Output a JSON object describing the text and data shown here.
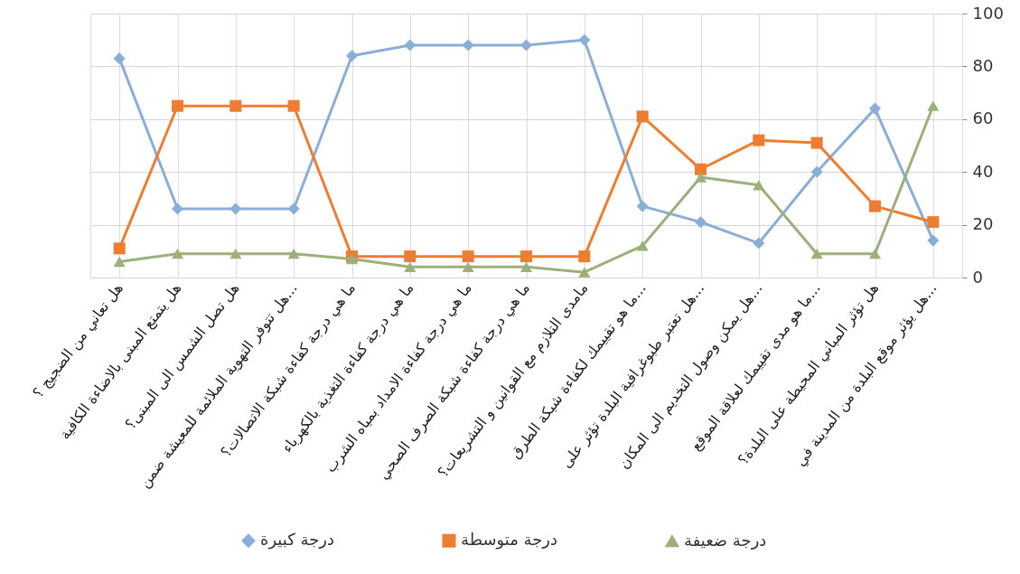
{
  "chart_data": {
    "type": "line",
    "categories": [
      "هل تعاني من الضجيج ؟",
      "هل يتمتع المبنى بالاضاءة الكافية",
      "هل تصل الشمس الى المبنى؟",
      "هل تتوفر التهوية الملائمة للمعيشة ضمن...",
      "ما هي درجة كفاءة شبكة الاتصالات؟",
      "ما هي درجة كفاءة التغذية بالكهرباء",
      "ما هي درجة كفاءة الامداد بمياه الشرب",
      "ما هي درجة كفاءة شبكة الصرف الصحي",
      "مامدى التلازم مع القوانين و التشريعات؟",
      "ما هو تقييمك لكفاءة شبكة الطرق...",
      "هل تعتبر طبوغرافية البلدة تؤثر على...",
      "هل يمكن وصول التخديم الى المكان...",
      "ما هو مدى تقييمك لعلاقة الموقع...",
      "هل تؤثر المباني المحيطة على البلدة؟",
      "هل يؤثر موقع البلدة من المدينة في..."
    ],
    "series": [
      {
        "name": "درجة كبيرة",
        "color": "#8aaed8",
        "marker": "diamond",
        "values": [
          83,
          26,
          26,
          26,
          84,
          88,
          88,
          88,
          90,
          27,
          21,
          13,
          40,
          64,
          14
        ]
      },
      {
        "name": "درجة متوسطة",
        "color": "#ed7d31",
        "marker": "square",
        "values": [
          11,
          65,
          65,
          65,
          8,
          8,
          8,
          8,
          8,
          61,
          41,
          52,
          51,
          27,
          21
        ]
      },
      {
        "name": "درجة ضعيفة",
        "color": "#9bb07a",
        "marker": "triangle",
        "values": [
          6,
          9,
          9,
          9,
          7,
          4,
          4,
          4,
          2,
          12,
          38,
          35,
          9,
          9,
          65
        ]
      }
    ],
    "ylim": [
      0,
      100
    ],
    "yticks": [
      0,
      20,
      40,
      60,
      80,
      100
    ],
    "grid": true,
    "legend": "bottom",
    "line_style": "solid"
  }
}
